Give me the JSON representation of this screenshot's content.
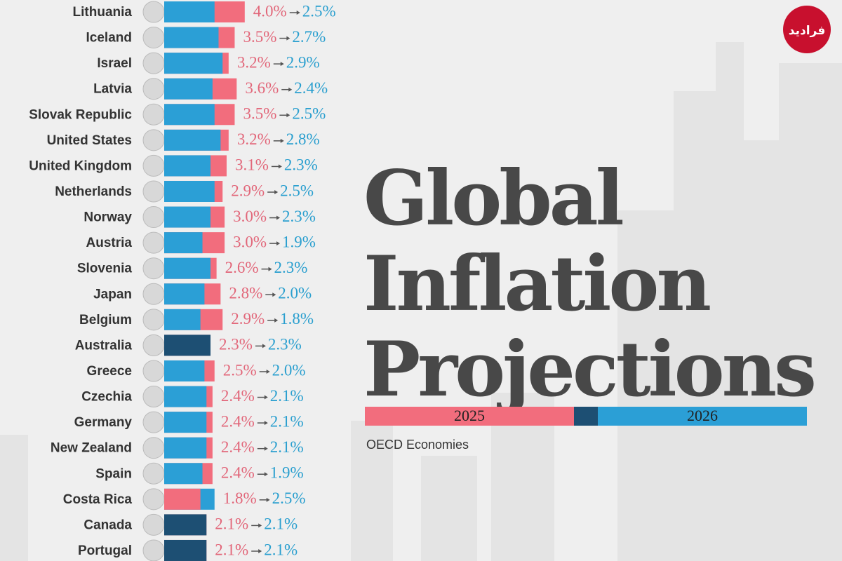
{
  "chart_data": {
    "type": "overlay-bar",
    "title": "Global Inflation Projections",
    "subtitle": "OECD Economies",
    "watermark": "فرادید",
    "overlap_color": "#1d4f73",
    "categories": [
      "Lithuania",
      "Iceland",
      "Israel",
      "Latvia",
      "Slovak Republic",
      "United States",
      "United Kingdom",
      "Netherlands",
      "Norway",
      "Austria",
      "Slovenia",
      "Japan",
      "Belgium",
      "Australia",
      "Greece",
      "Czechia",
      "Germany",
      "New Zealand",
      "Spain",
      "Costa Rica",
      "Canada",
      "Portugal"
    ],
    "series": [
      {
        "name": "2025",
        "color": "#f26d7d",
        "label_color": "#e2677a",
        "values": [
          4.0,
          3.5,
          3.2,
          3.6,
          3.5,
          3.2,
          3.1,
          2.9,
          3.0,
          3.0,
          2.6,
          2.8,
          2.9,
          2.3,
          2.5,
          2.4,
          2.4,
          2.4,
          2.4,
          1.8,
          2.1,
          2.1
        ],
        "value_labels": [
          "4.0%",
          "3.5%",
          "3.2%",
          "3.6%",
          "3.5%",
          "3.2%",
          "3.1%",
          "2.9%",
          "3.0%",
          "3.0%",
          "2.6%",
          "2.8%",
          "2.9%",
          "2.3%",
          "2.5%",
          "2.4%",
          "2.4%",
          "2.4%",
          "2.4%",
          "1.8%",
          "2.1%",
          "2.1%"
        ]
      },
      {
        "name": "2026",
        "color": "#2b9fd6",
        "label_color": "#2a9fcf",
        "values": [
          2.5,
          2.7,
          2.9,
          2.4,
          2.5,
          2.8,
          2.3,
          2.5,
          2.3,
          1.9,
          2.3,
          2.0,
          1.8,
          2.3,
          2.0,
          2.1,
          2.1,
          2.1,
          1.9,
          2.5,
          2.1,
          2.1
        ],
        "value_labels": [
          "2.5%",
          "2.7%",
          "2.9%",
          "2.4%",
          "2.5%",
          "2.8%",
          "2.3%",
          "2.5%",
          "2.3%",
          "1.9%",
          "2.3%",
          "2.0%",
          "1.8%",
          "2.3%",
          "2.0%",
          "2.1%",
          "2.1%",
          "2.1%",
          "1.9%",
          "2.5%",
          "2.1%",
          "2.1%"
        ]
      }
    ]
  }
}
